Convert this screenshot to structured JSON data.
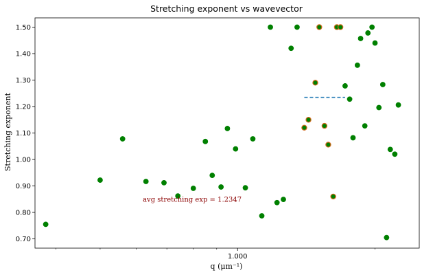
{
  "chart_data": {
    "type": "scatter",
    "title": "Stretching exponent vs wavevector",
    "xlabel": "q (μm⁻¹)",
    "ylabel": "Stretching exponent",
    "x_scale": "log",
    "xlim": [
      0.36,
      2.5
    ],
    "ylim": [
      0.665,
      1.535
    ],
    "x_major_ticks": [
      {
        "value": 1.0,
        "label": "1.000"
      }
    ],
    "x_minor_ticks": [
      0.4,
      0.5,
      0.6,
      0.7,
      0.8,
      0.9,
      2.0
    ],
    "y_ticks": [
      {
        "value": 0.7,
        "label": "0.70"
      },
      {
        "value": 0.8,
        "label": "0.80"
      },
      {
        "value": 0.9,
        "label": "0.90"
      },
      {
        "value": 1.0,
        "label": "1.00"
      },
      {
        "value": 1.1,
        "label": "1.10"
      },
      {
        "value": 1.2,
        "label": "1.20"
      },
      {
        "value": 1.3,
        "label": "1.30"
      },
      {
        "value": 1.4,
        "label": "1.40"
      },
      {
        "value": 1.5,
        "label": "1.50"
      }
    ],
    "point_color": "#008000",
    "highlight_edge_color": "#d2691e",
    "points": [
      {
        "x": 0.38,
        "y": 0.755
      },
      {
        "x": 0.5,
        "y": 0.922
      },
      {
        "x": 0.56,
        "y": 1.078
      },
      {
        "x": 0.63,
        "y": 0.917
      },
      {
        "x": 0.69,
        "y": 0.912
      },
      {
        "x": 0.74,
        "y": 0.862
      },
      {
        "x": 0.8,
        "y": 0.891
      },
      {
        "x": 0.85,
        "y": 1.068
      },
      {
        "x": 0.88,
        "y": 0.94
      },
      {
        "x": 0.92,
        "y": 0.896
      },
      {
        "x": 0.95,
        "y": 1.117
      },
      {
        "x": 0.99,
        "y": 1.04
      },
      {
        "x": 1.04,
        "y": 0.893
      },
      {
        "x": 1.08,
        "y": 1.078
      },
      {
        "x": 1.13,
        "y": 0.787
      },
      {
        "x": 1.18,
        "y": 1.5
      },
      {
        "x": 1.22,
        "y": 0.837
      },
      {
        "x": 1.26,
        "y": 0.849
      },
      {
        "x": 1.31,
        "y": 1.42
      },
      {
        "x": 1.35,
        "y": 1.5
      },
      {
        "x": 1.4,
        "y": 1.12,
        "highlight": true
      },
      {
        "x": 1.43,
        "y": 1.15,
        "highlight": true
      },
      {
        "x": 1.48,
        "y": 1.29,
        "highlight": true
      },
      {
        "x": 1.51,
        "y": 1.5,
        "highlight": true
      },
      {
        "x": 1.55,
        "y": 1.127,
        "highlight": true
      },
      {
        "x": 1.58,
        "y": 1.056,
        "highlight": true
      },
      {
        "x": 1.62,
        "y": 0.86,
        "highlight": true
      },
      {
        "x": 1.65,
        "y": 1.5,
        "highlight": true
      },
      {
        "x": 1.68,
        "y": 1.5,
        "highlight": true
      },
      {
        "x": 1.72,
        "y": 1.278
      },
      {
        "x": 1.76,
        "y": 1.228
      },
      {
        "x": 1.79,
        "y": 1.082
      },
      {
        "x": 1.83,
        "y": 1.356
      },
      {
        "x": 1.86,
        "y": 1.457
      },
      {
        "x": 1.9,
        "y": 1.127
      },
      {
        "x": 1.93,
        "y": 1.478
      },
      {
        "x": 1.97,
        "y": 1.5
      },
      {
        "x": 2.0,
        "y": 1.44
      },
      {
        "x": 2.04,
        "y": 1.196
      },
      {
        "x": 2.08,
        "y": 1.283
      },
      {
        "x": 2.12,
        "y": 0.705
      },
      {
        "x": 2.16,
        "y": 1.038
      },
      {
        "x": 2.21,
        "y": 1.02
      },
      {
        "x": 2.25,
        "y": 1.206
      }
    ],
    "avg_line": {
      "y": 1.2347,
      "x_start": 1.4,
      "x_end": 1.72,
      "color": "#1f77b4",
      "style": "dashed"
    },
    "annotation": {
      "text": "avg stretching exp = 1.2347",
      "x": 0.62,
      "y": 0.84,
      "color": "#8b0000"
    }
  }
}
